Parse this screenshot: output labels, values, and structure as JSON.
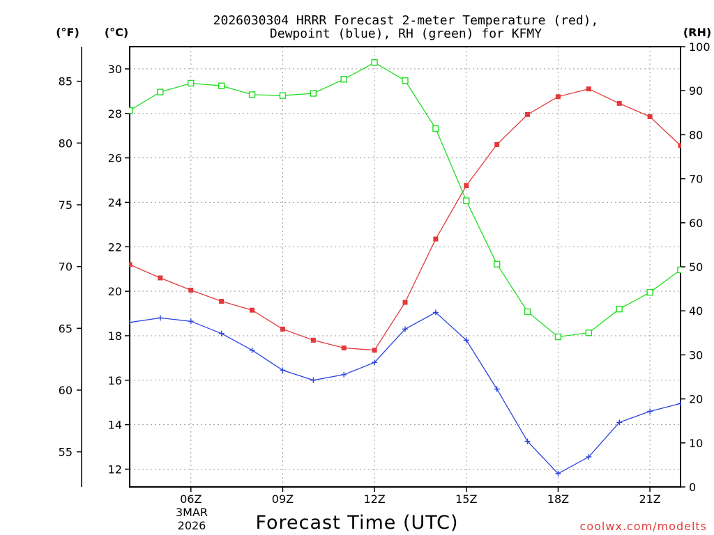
{
  "chart_data": {
    "type": "line",
    "title_line1": "2026030304 HRRR Forecast 2-meter Temperature (red),",
    "title_line2": "Dewpoint (blue), RH (green) for KFMY",
    "xlabel": "Forecast Time (UTC)",
    "credit": "coolwx.com/modelts",
    "units": {
      "fahrenheit": "(°F)",
      "celsius": "(°C)",
      "rh": "(RH)"
    },
    "x_hours": [
      4,
      5,
      6,
      7,
      8,
      9,
      10,
      11,
      12,
      13,
      14,
      15,
      16,
      17,
      18,
      19,
      20,
      21,
      22
    ],
    "xlim": [
      4,
      22
    ],
    "x_ticks": [
      {
        "hour": 6,
        "label": "06Z"
      },
      {
        "hour": 9,
        "label": "09Z"
      },
      {
        "hour": 12,
        "label": "12Z"
      },
      {
        "hour": 15,
        "label": "15Z"
      },
      {
        "hour": 18,
        "label": "18Z"
      },
      {
        "hour": 21,
        "label": "21Z"
      }
    ],
    "date_label_line1": "3MAR",
    "date_label_line2": "2026",
    "celsius_axis": {
      "ylim": [
        11.2,
        31
      ],
      "ticks": [
        12,
        14,
        16,
        18,
        20,
        22,
        24,
        26,
        28,
        30
      ]
    },
    "fahrenheit_axis": {
      "ticks": [
        55,
        60,
        65,
        70,
        75,
        80,
        85
      ]
    },
    "rh_axis": {
      "ylim": [
        0,
        100
      ],
      "ticks": [
        0,
        10,
        20,
        30,
        40,
        50,
        60,
        70,
        80,
        90,
        100
      ]
    },
    "series": [
      {
        "name": "Temperature",
        "color": "#e23a3a",
        "marker": "filled-square",
        "axis": "celsius",
        "values": [
          21.2,
          20.6,
          20.05,
          19.55,
          19.15,
          18.3,
          17.8,
          17.45,
          17.35,
          19.5,
          22.35,
          24.75,
          26.6,
          27.95,
          28.75,
          29.1,
          28.45,
          27.85,
          26.55
        ]
      },
      {
        "name": "Dewpoint",
        "color": "#2b43e0",
        "marker": "plus",
        "axis": "celsius",
        "values": [
          18.6,
          18.8,
          18.65,
          18.1,
          17.35,
          16.45,
          16.0,
          16.25,
          16.8,
          18.3,
          19.05,
          17.8,
          15.6,
          13.25,
          11.8,
          12.55,
          14.1,
          14.6,
          14.95
        ]
      },
      {
        "name": "RH",
        "color": "#22dd22",
        "marker": "open-square",
        "axis": "rh",
        "values": [
          85.5,
          89.7,
          91.7,
          91.1,
          89.1,
          88.9,
          89.4,
          92.6,
          96.4,
          92.3,
          81.4,
          65.0,
          50.6,
          39.8,
          34.1,
          35.0,
          40.4,
          44.2,
          49.3
        ]
      }
    ]
  }
}
